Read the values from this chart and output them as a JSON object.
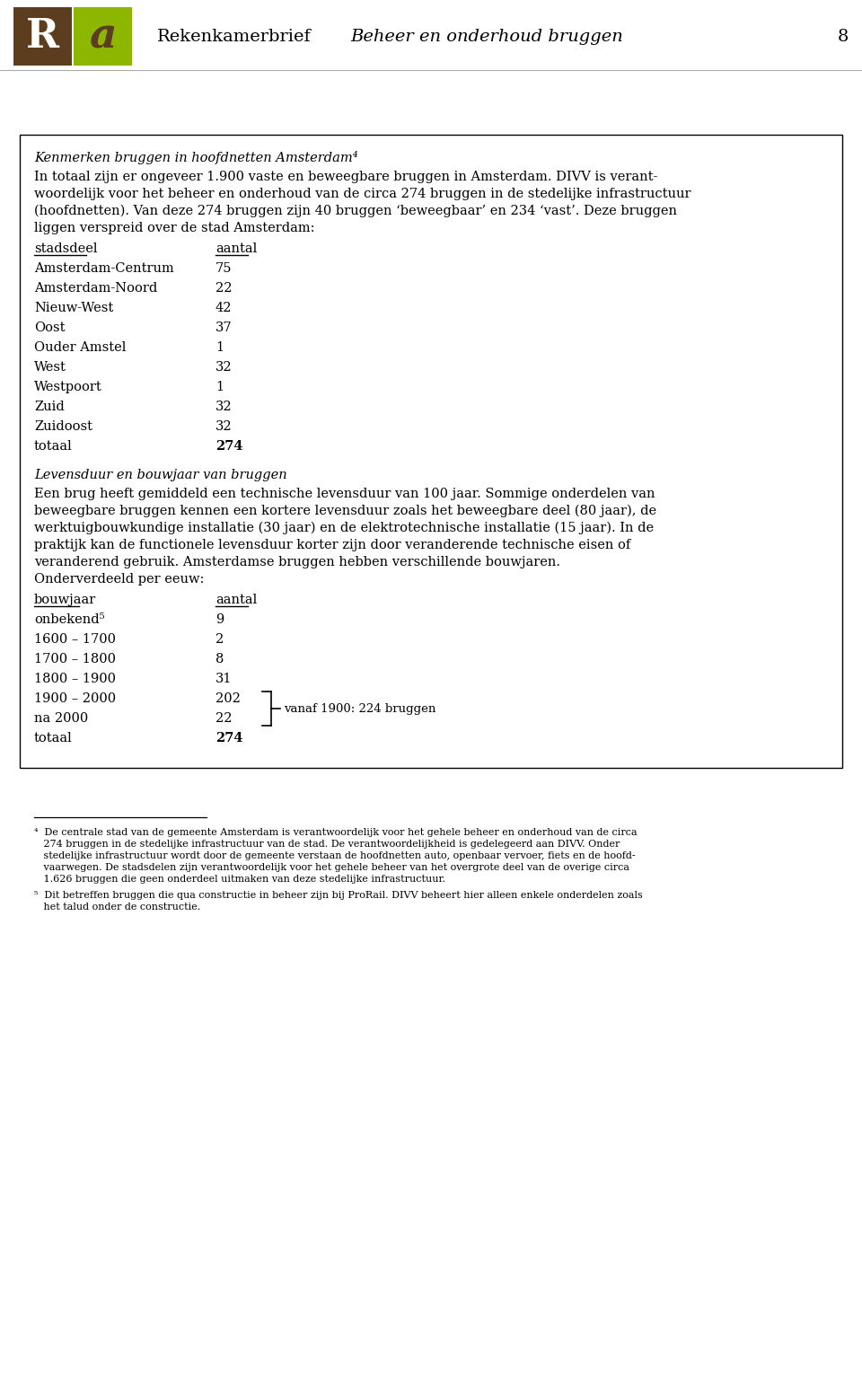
{
  "page_number": "8",
  "header_title": "Rekenkamerbrief",
  "header_subtitle": "Beheer en onderhoud bruggen",
  "logo_brown": "#5C3D1E",
  "logo_green": "#8DB600",
  "logo_R": "R",
  "logo_a": "a",
  "box_title": "Kenmerken bruggen in hoofdnetten Amsterdam⁴",
  "para1_lines": [
    "In totaal zijn er ongeveer 1.900 vaste en beweegbare bruggen in Amsterdam. DIVV is verant-",
    "woordelijk voor het beheer en onderhoud van de circa 274 bruggen in de stedelijke infrastructuur",
    "(hoofdnetten). Van deze 274 bruggen zijn 40 bruggen ‘beweegbaar’ en 234 ‘vast’. Deze bruggen",
    "liggen verspreid over de stad Amsterdam:"
  ],
  "table1_header": [
    "stadsdeel",
    "aantal"
  ],
  "table1_rows": [
    [
      "Amsterdam-Centrum",
      "75"
    ],
    [
      "Amsterdam-Noord",
      "22"
    ],
    [
      "Nieuw-West",
      "42"
    ],
    [
      "Oost",
      "37"
    ],
    [
      "Ouder Amstel",
      "1"
    ],
    [
      "West",
      "32"
    ],
    [
      "Westpoort",
      "1"
    ],
    [
      "Zuid",
      "32"
    ],
    [
      "Zuidoost",
      "32"
    ]
  ],
  "table1_total": [
    "totaal",
    "274"
  ],
  "section2_title": "Levensduur en bouwjaar van bruggen",
  "para2_lines": [
    "Een brug heeft gemiddeld een technische levensduur van 100 jaar. Sommige onderdelen van",
    "beweegbare bruggen kennen een kortere levensduur zoals het beweegbare deel (80 jaar), de",
    "werktuigbouwkundige installatie (30 jaar) en de elektrotechnische installatie (15 jaar). In de",
    "praktijk kan de functionele levensduur korter zijn door veranderende technische eisen of",
    "veranderend gebruik. Amsterdamse bruggen hebben verschillende bouwjaren.",
    "Onderverdeeld per eeuw:"
  ],
  "table2_header": [
    "bouwjaar",
    "aantal"
  ],
  "table2_rows": [
    [
      "onbekend⁵",
      "9"
    ],
    [
      "1600 – 1700",
      "2"
    ],
    [
      "1700 – 1800",
      "8"
    ],
    [
      "1800 – 1900",
      "31"
    ],
    [
      "1900 – 2000",
      "202"
    ],
    [
      "na 2000",
      "22"
    ]
  ],
  "table2_total": [
    "totaal",
    "274"
  ],
  "brace_label": "vanaf 1900: 224 bruggen",
  "footnote4_lines": [
    "⁴  De centrale stad van de gemeente Amsterdam is verantwoordelijk voor het gehele beheer en onderhoud van de circa",
    "   274 bruggen in de stedelijke infrastructuur van de stad. De verantwoordelijkheid is gedelegeerd aan DIVV. Onder",
    "   stedelijke infrastructuur wordt door de gemeente verstaan de hoofdnetten auto, openbaar vervoer, fiets en de hoofd-",
    "   vaarwegen. De stadsdelen zijn verantwoordelijk voor het gehele beheer van het overgrote deel van de overige circa",
    "   1.626 bruggen die geen onderdeel uitmaken van deze stedelijke infrastructuur."
  ],
  "footnote5_lines": [
    "⁵  Dit betreffen bruggen die qua constructie in beheer zijn bij ProRail. DIVV beheert hier alleen enkele onderdelen zoals",
    "   het talud onder de constructie."
  ],
  "bg_color": "#ffffff",
  "box_border_color": "#000000",
  "text_color": "#000000"
}
